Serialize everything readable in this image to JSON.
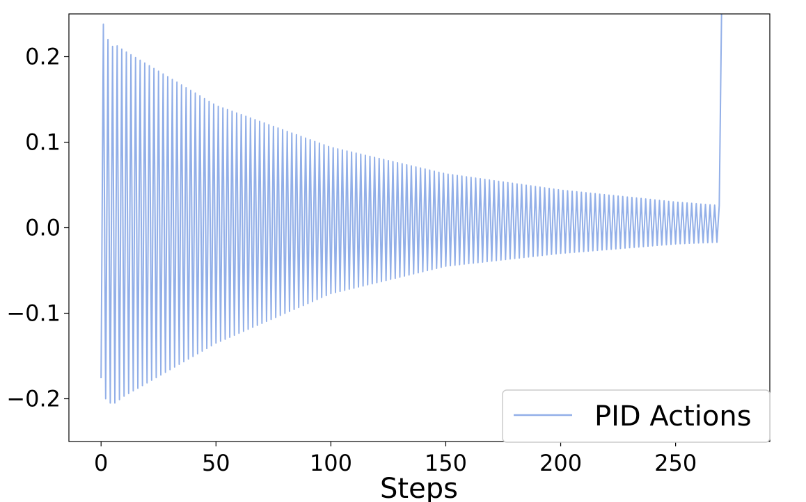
{
  "chart_data": {
    "type": "line",
    "title": "",
    "xlabel": "Steps",
    "ylabel": "",
    "xlim": [
      -14,
      291
    ],
    "ylim": [
      -0.25,
      0.25
    ],
    "x_ticks": [
      0,
      50,
      100,
      150,
      200,
      250
    ],
    "x_tick_labels": [
      "0",
      "50",
      "100",
      "150",
      "200",
      "250"
    ],
    "y_ticks": [
      -0.2,
      -0.1,
      0.0,
      0.1,
      0.2
    ],
    "y_tick_labels": [
      "−0.2",
      "−0.1",
      "0.0",
      "0.1",
      "0.2"
    ],
    "grid": false,
    "legend_position": "lower right",
    "series": [
      {
        "name": "PID Actions",
        "color": "#92afe8",
        "signal_model": {
          "description": "alternating oscillation with decaying envelope, then spike at the end",
          "steps": 270,
          "first_values": [
            -0.176,
            0.238,
            -0.2,
            0.22,
            -0.205,
            0.212
          ],
          "high_envelope": [
            [
              1,
              0.238
            ],
            [
              3,
              0.22
            ],
            [
              10,
              0.207
            ],
            [
              50,
              0.143
            ],
            [
              100,
              0.094
            ],
            [
              150,
              0.063
            ],
            [
              200,
              0.044
            ],
            [
              250,
              0.03
            ],
            [
              269,
              0.026
            ]
          ],
          "low_envelope": [
            [
              2,
              -0.2
            ],
            [
              6,
              -0.205
            ],
            [
              10,
              -0.197
            ],
            [
              50,
              -0.135
            ],
            [
              100,
              -0.077
            ],
            [
              150,
              -0.045
            ],
            [
              200,
              -0.03
            ],
            [
              250,
              -0.019
            ],
            [
              268,
              -0.017
            ]
          ],
          "final_values": [
            [
              269,
              0.026
            ],
            [
              270,
              0.25
            ]
          ]
        }
      }
    ]
  }
}
